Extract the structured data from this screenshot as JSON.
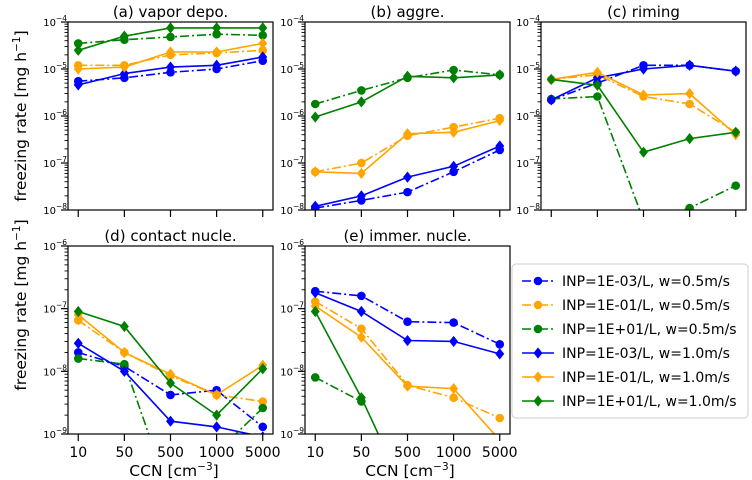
{
  "figure": {
    "ylabel": "freezing rate [mg h$^{-1}$]",
    "ylabel_main": "freezing rate [mg h",
    "ylabel_sup": "−1",
    "ylabel_tail": "]",
    "xlabel_main": "CCN [cm",
    "xlabel_sup": "−3",
    "xlabel_tail": "]",
    "x_ticks": [
      "10",
      "50",
      "500",
      "1000",
      "5000"
    ],
    "y_scale": "log"
  },
  "legend": {
    "placement": "right of panel (e)",
    "entries": [
      {
        "label": "INP=1E-03/L, w=0.5m/s",
        "color": "#0000ff",
        "marker": "circle",
        "line": "dashdot"
      },
      {
        "label": "INP=1E-01/L, w=0.5m/s",
        "color": "#ffa500",
        "marker": "circle",
        "line": "dashdot"
      },
      {
        "label": "INP=1E+01/L, w=0.5m/s",
        "color": "#008000",
        "marker": "circle",
        "line": "dashdot"
      },
      {
        "label": "INP=1E-03/L, w=1.0m/s",
        "color": "#0000ff",
        "marker": "diamond",
        "line": "solid"
      },
      {
        "label": "INP=1E-01/L, w=1.0m/s",
        "color": "#ffa500",
        "marker": "diamond",
        "line": "solid"
      },
      {
        "label": "INP=1E+01/L, w=1.0m/s",
        "color": "#008000",
        "marker": "diamond",
        "line": "solid"
      }
    ]
  },
  "chart_data": [
    {
      "type": "line",
      "title": "(a) vapor depo.",
      "categories": [
        "10",
        "50",
        "500",
        "1000",
        "5000"
      ],
      "y_scale": "log",
      "ylim": [
        1e-08,
        0.0001
      ],
      "y_ticks": [
        "10−8",
        "10−7",
        "10−6",
        "10−5",
        "10−4"
      ],
      "series": [
        {
          "name": "INP=1E-03/L, w=0.5m/s",
          "values": [
            5.5e-06,
            6.5e-06,
            8.5e-06,
            1e-05,
            1.5e-05
          ]
        },
        {
          "name": "INP=1E-01/L, w=0.5m/s",
          "values": [
            1.2e-05,
            1.2e-05,
            2e-05,
            2.2e-05,
            2.5e-05
          ]
        },
        {
          "name": "INP=1E+01/L, w=0.5m/s",
          "values": [
            3.5e-05,
            4.2e-05,
            4.8e-05,
            5.5e-05,
            5.2e-05
          ]
        },
        {
          "name": "INP=1E-03/L, w=1.0m/s",
          "values": [
            4.6e-06,
            8e-06,
            1.1e-05,
            1.2e-05,
            1.8e-05
          ]
        },
        {
          "name": "INP=1E-01/L, w=1.0m/s",
          "values": [
            1e-05,
            1.1e-05,
            2.3e-05,
            2.3e-05,
            3.5e-05
          ]
        },
        {
          "name": "INP=1E+01/L, w=1.0m/s",
          "values": [
            2.5e-05,
            5e-05,
            7.5e-05,
            7.5e-05,
            7.5e-05
          ]
        }
      ]
    },
    {
      "type": "line",
      "title": "(b) aggre.",
      "categories": [
        "10",
        "50",
        "500",
        "1000",
        "5000"
      ],
      "y_scale": "log",
      "ylim": [
        1e-08,
        0.0001
      ],
      "y_ticks": [
        "10−8",
        "10−7",
        "10−6",
        "10−5",
        "10−4"
      ],
      "series": [
        {
          "name": "INP=1E-03/L, w=0.5m/s",
          "values": [
            1.1e-08,
            1.6e-08,
            2.4e-08,
            6.5e-08,
            1.9e-07
          ]
        },
        {
          "name": "INP=1E-01/L, w=0.5m/s",
          "values": [
            6.5e-08,
            1e-07,
            3.8e-07,
            5.8e-07,
            9e-07
          ]
        },
        {
          "name": "INP=1E+01/L, w=0.5m/s",
          "values": [
            1.8e-06,
            3.5e-06,
            6.5e-06,
            9.5e-06,
            7.5e-06
          ]
        },
        {
          "name": "INP=1E-03/L, w=1.0m/s",
          "values": [
            1.2e-08,
            2e-08,
            5e-08,
            8.5e-08,
            2.3e-07
          ]
        },
        {
          "name": "INP=1E-01/L, w=1.0m/s",
          "values": [
            6.5e-08,
            6e-08,
            4.2e-07,
            4.5e-07,
            8e-07
          ]
        },
        {
          "name": "INP=1E+01/L, w=1.0m/s",
          "values": [
            9.5e-07,
            2e-06,
            7e-06,
            6.5e-06,
            7.5e-06
          ]
        }
      ]
    },
    {
      "type": "line",
      "title": "(c) riming",
      "categories": [
        "10",
        "50",
        "500",
        "1000",
        "5000"
      ],
      "y_scale": "log",
      "ylim": [
        1e-08,
        0.0001
      ],
      "y_ticks": [
        "10−8",
        "10−7",
        "10−6",
        "10−5",
        "10−4"
      ],
      "series": [
        {
          "name": "INP=1E-03/L, w=0.5m/s",
          "values": [
            2.2e-06,
            5e-06,
            1.2e-05,
            1.2e-05,
            9e-06
          ]
        },
        {
          "name": "INP=1E-01/L, w=0.5m/s",
          "values": [
            6e-06,
            7.5e-06,
            2.6e-06,
            1.8e-06,
            4.5e-07
          ]
        },
        {
          "name": "INP=1E+01/L, w=0.5m/s",
          "values": [
            2.3e-06,
            2.6e-06,
            6e-09,
            1.1e-08,
            3.3e-08
          ]
        },
        {
          "name": "INP=1E-03/L, w=1.0m/s",
          "values": [
            2.2e-06,
            6.5e-06,
            1e-05,
            1.2e-05,
            9e-06
          ]
        },
        {
          "name": "INP=1E-01/L, w=1.0m/s",
          "values": [
            6e-06,
            8.5e-06,
            2.8e-06,
            3e-06,
            4e-07
          ]
        },
        {
          "name": "INP=1E+01/L, w=1.0m/s",
          "values": [
            6e-06,
            4.5e-06,
            1.7e-07,
            3.3e-07,
            4.5e-07
          ]
        }
      ]
    },
    {
      "type": "line",
      "title": "(d) contact nucle.",
      "categories": [
        "10",
        "50",
        "500",
        "1000",
        "5000"
      ],
      "y_scale": "log",
      "ylim": [
        1e-09,
        1e-06
      ],
      "y_ticks": [
        "10−9",
        "10−8",
        "10−7",
        "10−6"
      ],
      "series": [
        {
          "name": "INP=1E-03/L, w=0.5m/s",
          "values": [
            2e-08,
            1.2e-08,
            4.2e-09,
            5e-09,
            1.3e-09
          ]
        },
        {
          "name": "INP=1E-01/L, w=0.5m/s",
          "values": [
            6.5e-08,
            2e-08,
            8.5e-09,
            4.2e-09,
            3.3e-09
          ]
        },
        {
          "name": "INP=1E+01/L, w=0.5m/s",
          "values": [
            1.6e-08,
            1.3e-08,
            1e-10,
            null,
            2.6e-09
          ]
        },
        {
          "name": "INP=1E-03/L, w=1.0m/s",
          "values": [
            2.8e-08,
            1e-08,
            1.6e-09,
            1.3e-09,
            9e-10
          ]
        },
        {
          "name": "INP=1E-01/L, w=1.0m/s",
          "values": [
            8e-08,
            2e-08,
            9e-09,
            4.2e-09,
            1.25e-08
          ]
        },
        {
          "name": "INP=1E+01/L, w=1.0m/s",
          "values": [
            9e-08,
            5.2e-08,
            6.5e-09,
            2e-09,
            1.1e-08
          ]
        }
      ]
    },
    {
      "type": "line",
      "title": "(e) immer. nucle.",
      "categories": [
        "10",
        "50",
        "500",
        "1000",
        "5000"
      ],
      "y_scale": "log",
      "ylim": [
        1e-09,
        1e-06
      ],
      "y_ticks": [
        "10−9",
        "10−8",
        "10−7",
        "10−6"
      ],
      "series": [
        {
          "name": "INP=1E-03/L, w=0.5m/s",
          "values": [
            1.9e-07,
            1.6e-07,
            6.2e-08,
            6e-08,
            2.7e-08
          ]
        },
        {
          "name": "INP=1E-01/L, w=0.5m/s",
          "values": [
            1.3e-07,
            4.8e-08,
            6e-09,
            3.8e-09,
            1.8e-09
          ]
        },
        {
          "name": "INP=1E+01/L, w=0.5m/s",
          "values": [
            8e-09,
            3.3e-09,
            null,
            null,
            null
          ]
        },
        {
          "name": "INP=1E-03/L, w=1.0m/s",
          "values": [
            1.8e-07,
            9e-08,
            3.1e-08,
            3e-08,
            1.9e-08
          ]
        },
        {
          "name": "INP=1E-01/L, w=1.0m/s",
          "values": [
            1.1e-07,
            3.5e-08,
            5.8e-09,
            5.3e-09,
            8e-10
          ]
        },
        {
          "name": "INP=1E+01/L, w=1.0m/s",
          "values": [
            9e-08,
            3.8e-09,
            1e-10,
            null,
            null
          ]
        }
      ]
    }
  ]
}
